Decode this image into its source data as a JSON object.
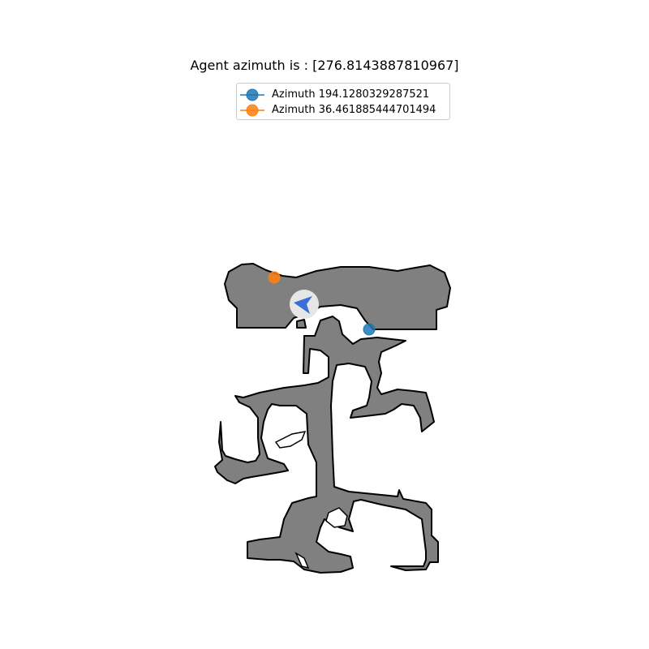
{
  "title": "Agent azimuth is : [276.8143887810967]",
  "legend": [
    {
      "label": "Azimuth 194.1280329287521",
      "color": "#1f77b4"
    },
    {
      "label": "Azimuth 36.461885444701494",
      "color": "#ff7f0e"
    }
  ],
  "colors": {
    "floor": "#808080",
    "wall": "#000000",
    "agent_halo": "#e6e6e6",
    "agent_arrow": "#3b6fd6"
  },
  "icons": {
    "agent": "navigation-arrow-icon",
    "goal": "circle-marker-icon"
  }
}
